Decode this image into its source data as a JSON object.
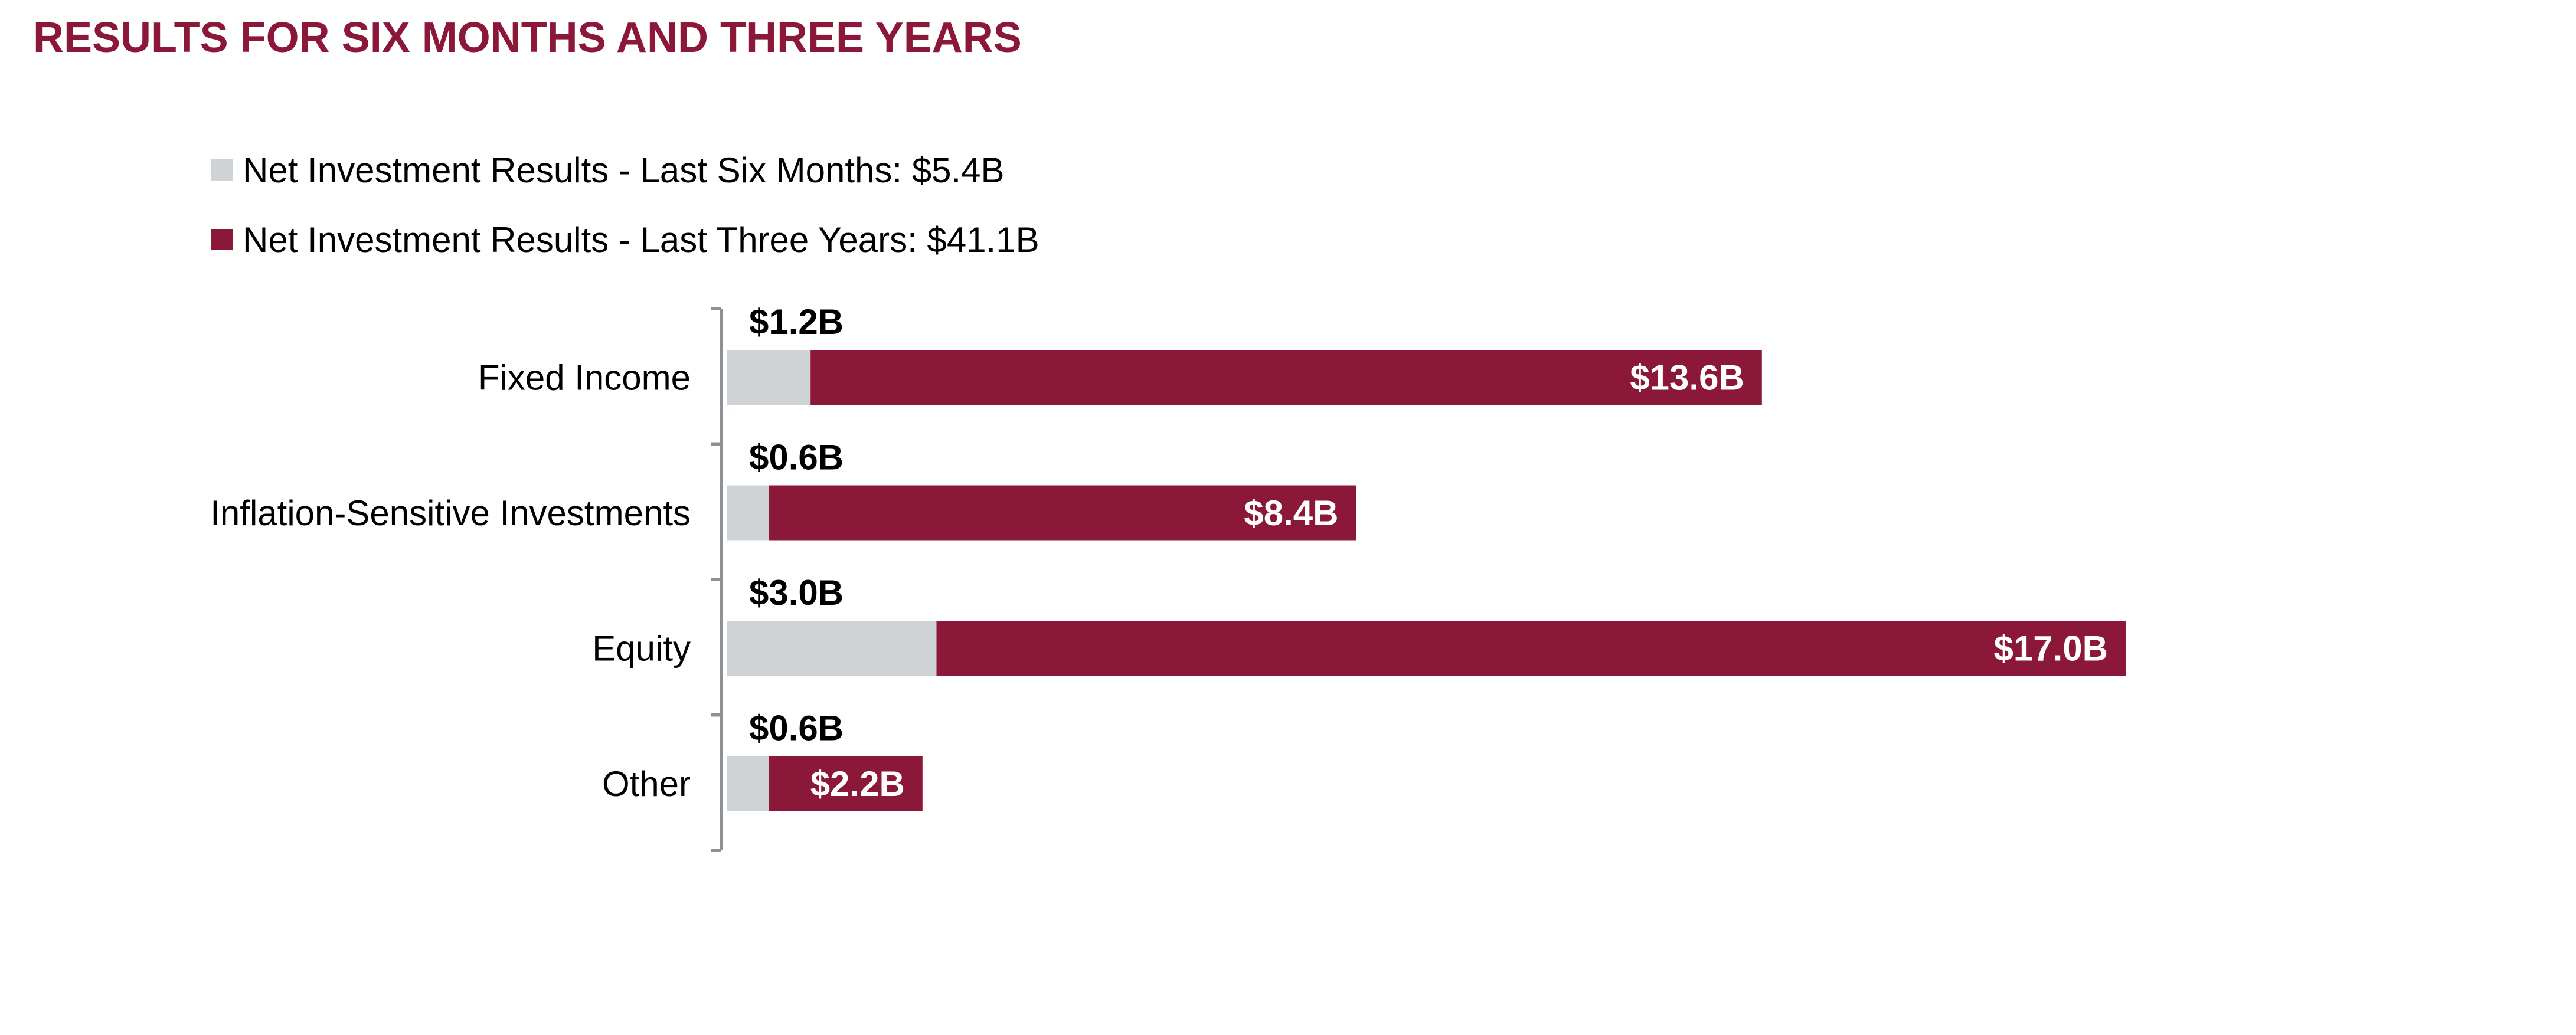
{
  "chart_data": {
    "type": "bar",
    "orientation": "horizontal",
    "stacked": true,
    "title": "RESULTS FOR SIX MONTHS AND THREE YEARS",
    "categories": [
      "Fixed Income",
      "Inflation-Sensitive Investments",
      "Equity",
      "Other"
    ],
    "series": [
      {
        "name": "Net Investment Results - Last Six Months: $5.4B",
        "color": "#D0D3D6",
        "values": [
          1.2,
          0.6,
          3.0,
          0.6
        ],
        "labels": [
          "$1.2B",
          "$0.6B",
          "$3.0B",
          "$0.6B"
        ]
      },
      {
        "name": "Net Investment Results - Last Three Years: $41.1B",
        "color": "#8B1838",
        "values": [
          13.6,
          8.4,
          17.0,
          2.2
        ],
        "labels": [
          "$13.6B",
          "$8.4B",
          "$17.0B",
          "$2.2B"
        ]
      }
    ],
    "xlabel": "",
    "ylabel": "",
    "unit": "$B",
    "grid": false,
    "legend_position": "top-left"
  },
  "colors": {
    "title": "#8B1838",
    "axis": "#8C9196"
  }
}
